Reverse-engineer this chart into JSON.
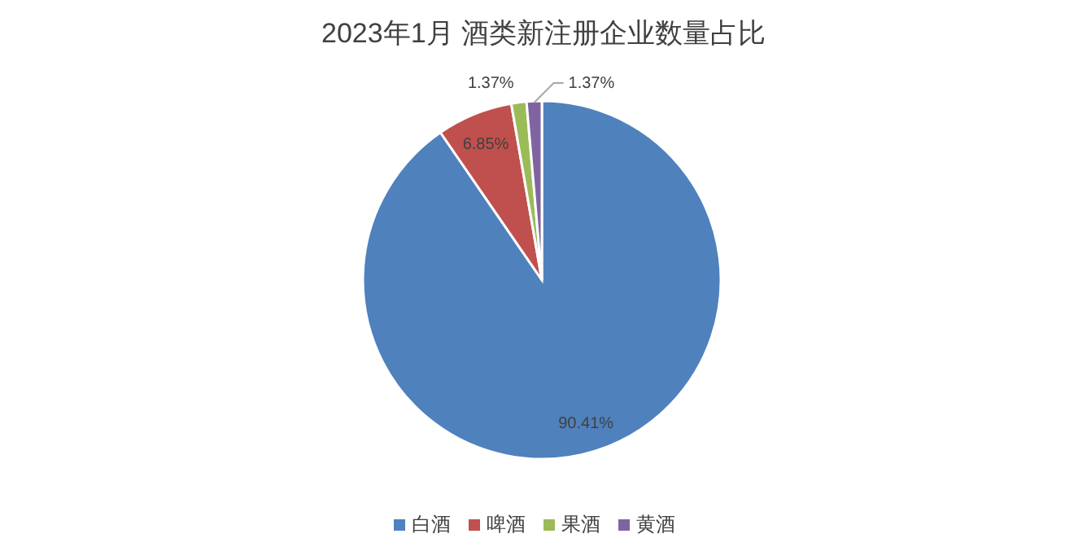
{
  "chart_data": {
    "type": "pie",
    "title": "2023年1月 酒类新注册企业数量占比",
    "categories": [
      "白酒",
      "啤酒",
      "果酒",
      "黄酒"
    ],
    "values": [
      90.41,
      6.85,
      1.37,
      1.37
    ],
    "colors": [
      "#4f81bd",
      "#c0504d",
      "#9bbb59",
      "#8064a2"
    ],
    "value_labels": [
      "90.41%",
      "6.85%",
      "1.37%",
      "1.37%"
    ],
    "legend": "bottom"
  }
}
